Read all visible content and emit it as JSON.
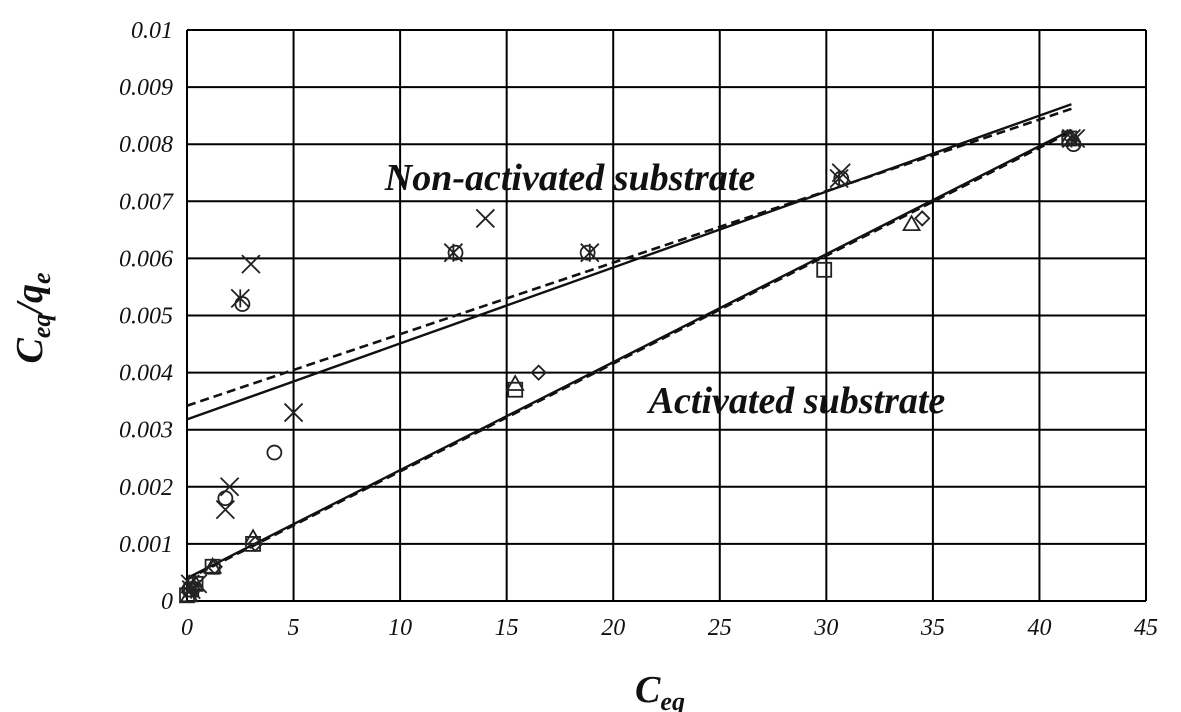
{
  "chart_data": {
    "type": "scatter",
    "title": "",
    "xlabel": "C",
    "xlabel_sub": "eq",
    "ylabel_c": "C",
    "ylabel_sub1": "eq",
    "ylabel_q": "/q",
    "ylabel_sub2": "e",
    "xlim": [
      0,
      45
    ],
    "ylim": [
      0,
      0.01
    ],
    "xticks": [
      0,
      5,
      10,
      15,
      20,
      25,
      30,
      35,
      40,
      45
    ],
    "yticks": [
      0,
      0.001,
      0.002,
      0.003,
      0.004,
      0.005,
      0.006,
      0.007,
      0.008,
      0.009,
      0.01
    ],
    "xtick_labels": [
      "0",
      "5",
      "10",
      "15",
      "20",
      "25",
      "30",
      "35",
      "40",
      "45"
    ],
    "ytick_labels": [
      "0",
      "0.001",
      "0.002",
      "0.003",
      "0.004",
      "0.005",
      "0.006",
      "0.007",
      "0.008",
      "0.009",
      "0.01"
    ],
    "grid": true,
    "annotations": [
      {
        "text": "Non-activated substrate",
        "x": 18.5,
        "y": 0.0074
      },
      {
        "text": "Activated substrate",
        "x": 28.5,
        "y": 0.0034
      }
    ],
    "series": [
      {
        "marker": "cross",
        "points": [
          [
            0.15,
            0.0003
          ],
          [
            0.5,
            0.0003
          ],
          [
            1.8,
            0.0016
          ],
          [
            2.0,
            0.002
          ],
          [
            3.0,
            0.0059
          ],
          [
            5.0,
            0.0033
          ],
          [
            14.0,
            0.0067
          ],
          [
            30.7,
            0.0075
          ],
          [
            41.7,
            0.0081
          ]
        ]
      },
      {
        "marker": "asterisk",
        "points": [
          [
            0.2,
            0.0002
          ],
          [
            2.5,
            0.0053
          ],
          [
            12.5,
            0.0061
          ],
          [
            18.9,
            0.0061
          ],
          [
            30.6,
            0.0074
          ],
          [
            41.5,
            0.0081
          ]
        ]
      },
      {
        "marker": "circle",
        "points": [
          [
            0.1,
            0.0002
          ],
          [
            1.8,
            0.0018
          ],
          [
            2.6,
            0.0052
          ],
          [
            4.1,
            0.0026
          ],
          [
            12.6,
            0.0061
          ],
          [
            18.8,
            0.0061
          ],
          [
            30.7,
            0.0074
          ],
          [
            41.6,
            0.008
          ]
        ]
      },
      {
        "marker": "square",
        "points": [
          [
            0.0,
            0.0001
          ],
          [
            0.2,
            0.0002
          ],
          [
            0.4,
            0.0003
          ],
          [
            1.2,
            0.0006
          ],
          [
            3.1,
            0.001
          ],
          [
            15.4,
            0.0037
          ],
          [
            29.9,
            0.0058
          ],
          [
            41.4,
            0.0081
          ]
        ]
      },
      {
        "marker": "triangle",
        "points": [
          [
            0.1,
            0.0001
          ],
          [
            0.4,
            0.0003
          ],
          [
            1.2,
            0.0006
          ],
          [
            3.1,
            0.0011
          ],
          [
            15.4,
            0.0038
          ],
          [
            34.0,
            0.0066
          ],
          [
            41.4,
            0.0081
          ]
        ]
      },
      {
        "marker": "diamond",
        "points": [
          [
            0.3,
            0.0002
          ],
          [
            1.3,
            0.0006
          ],
          [
            3.2,
            0.001
          ],
          [
            16.5,
            0.004
          ],
          [
            34.5,
            0.0067
          ],
          [
            41.5,
            0.0081
          ]
        ]
      }
    ],
    "lines": [
      {
        "style": "solid",
        "x": [
          0,
          41.5
        ],
        "y": [
          0.00318,
          0.0087
        ]
      },
      {
        "style": "dashed",
        "x": [
          0,
          41.5
        ],
        "y": [
          0.00342,
          0.00862
        ]
      },
      {
        "style": "solid",
        "x": [
          0,
          41.5
        ],
        "y": [
          0.0004,
          0.00825
        ]
      },
      {
        "style": "dashed",
        "x": [
          0,
          41.5
        ],
        "y": [
          0.00038,
          0.00822
        ]
      }
    ]
  }
}
